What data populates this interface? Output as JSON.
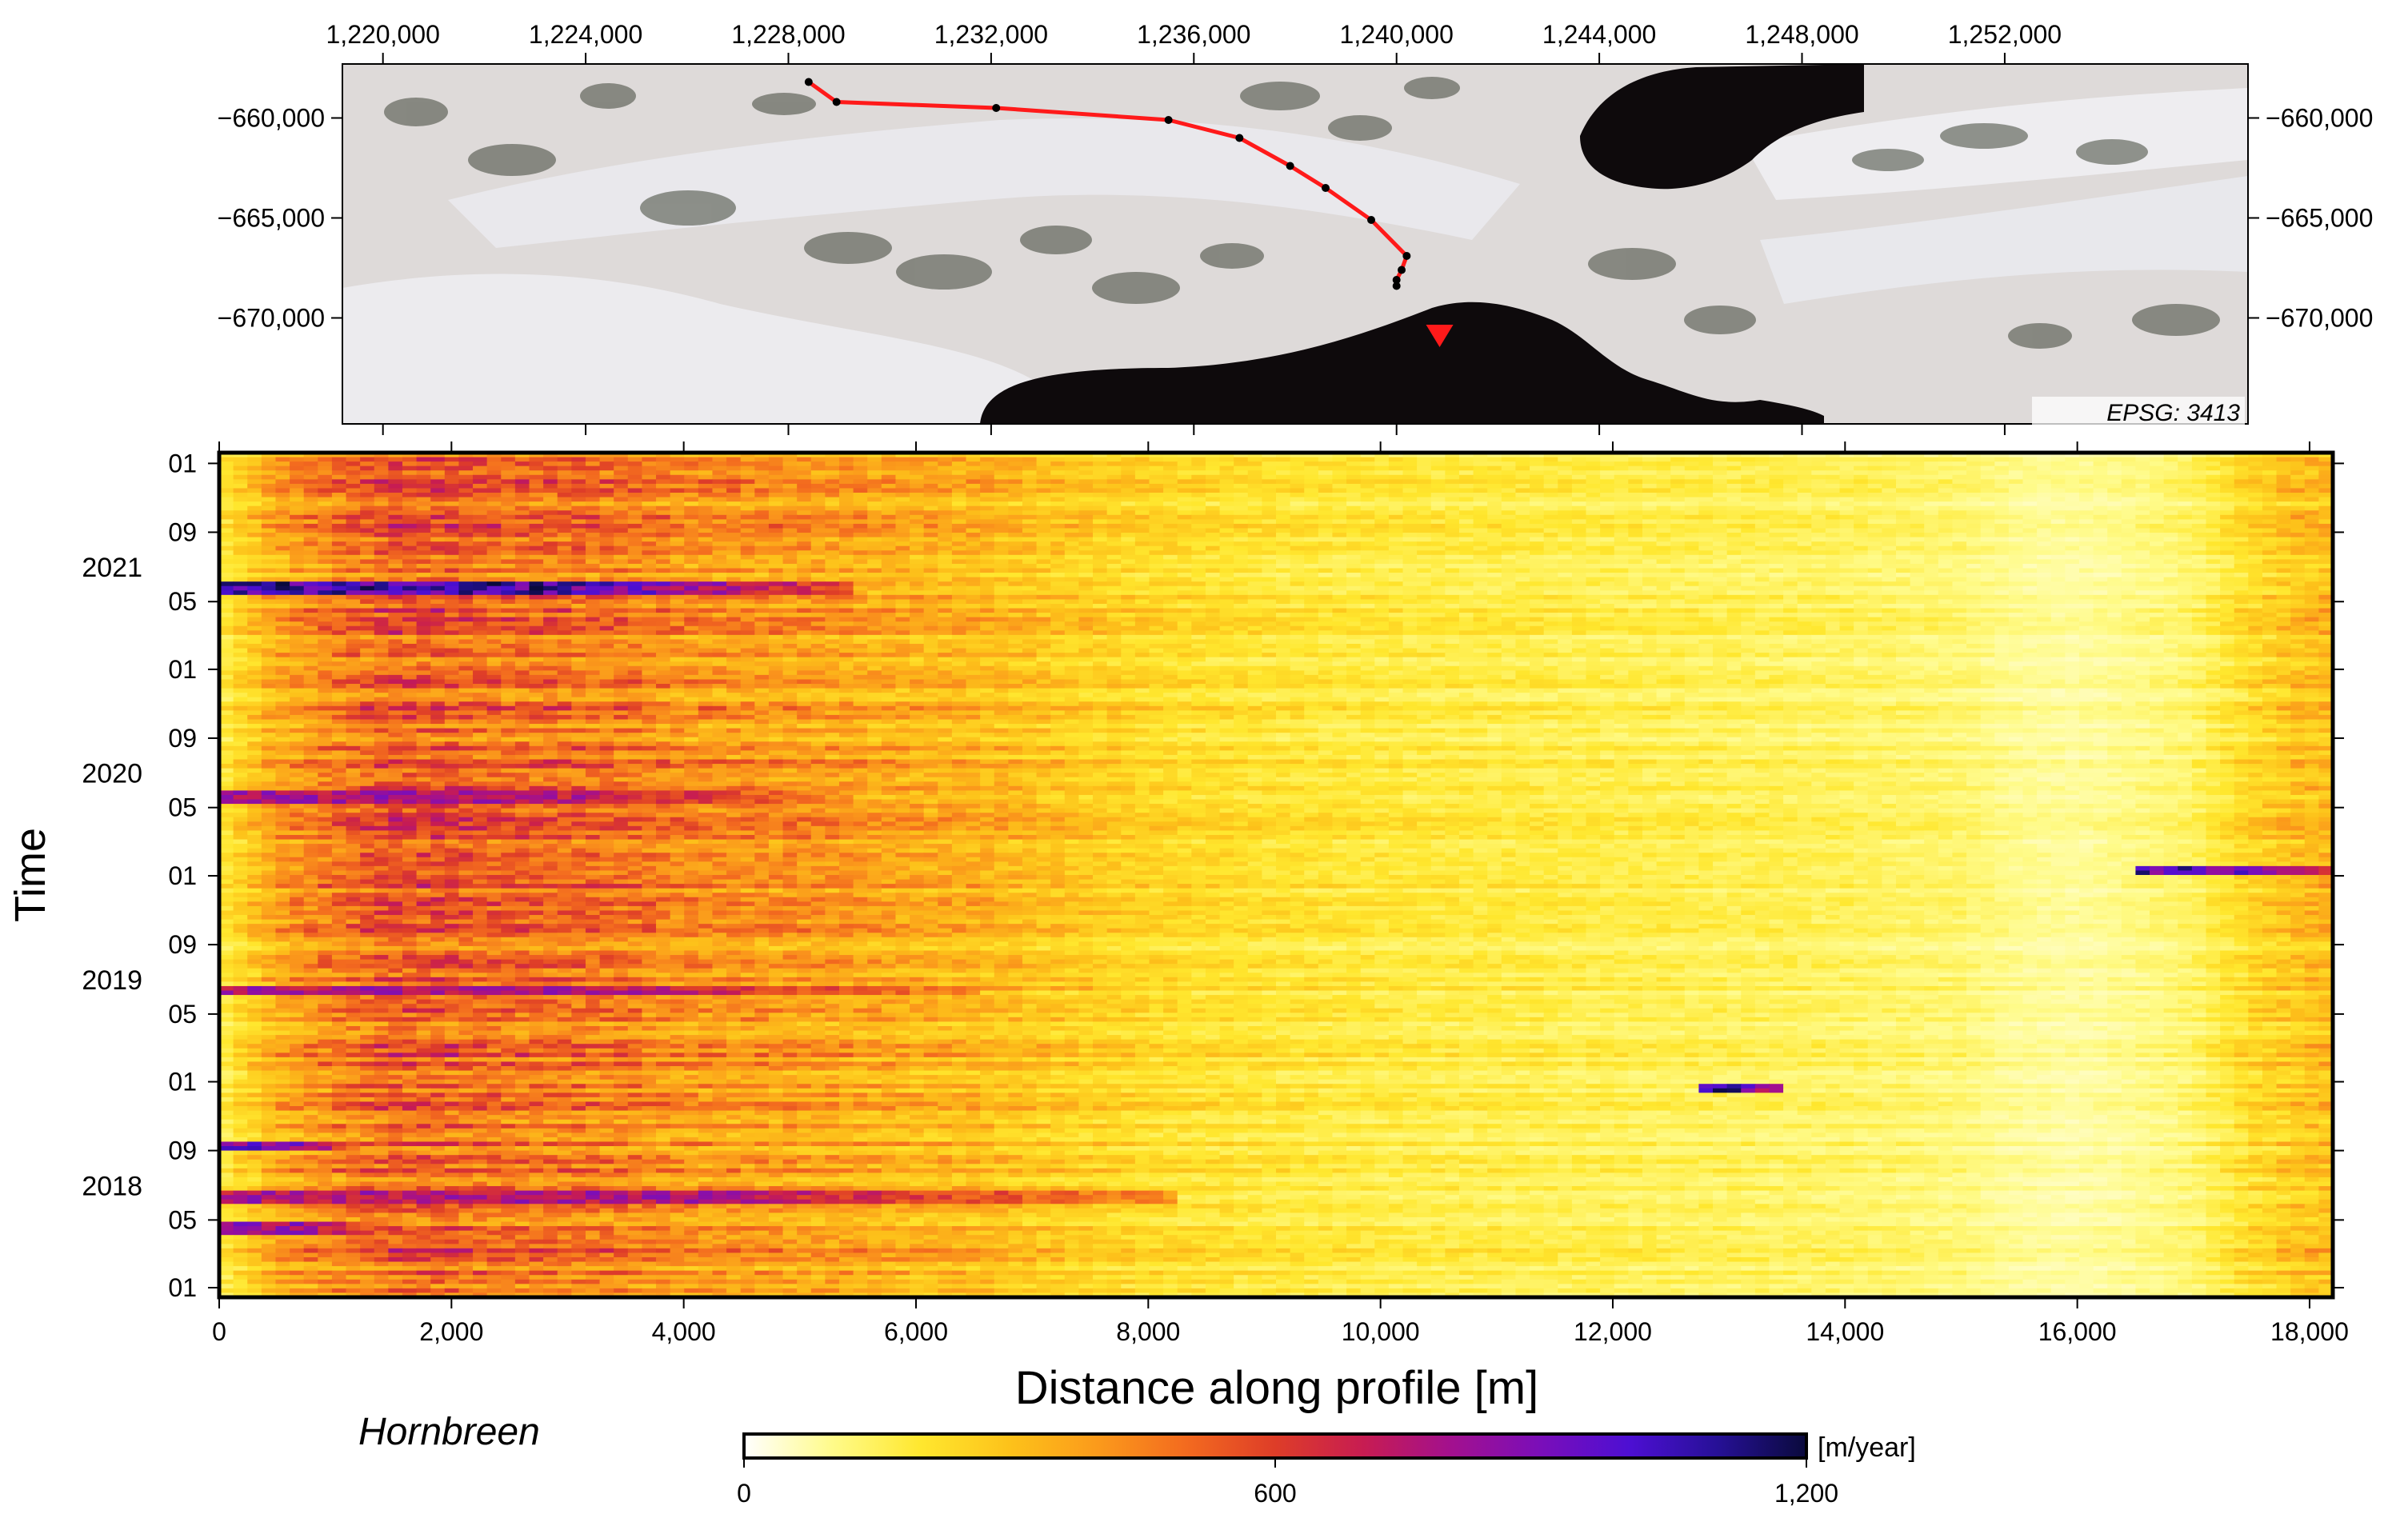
{
  "map": {
    "x_ticks": [
      "1,220,000",
      "1,224,000",
      "1,228,000",
      "1,232,000",
      "1,236,000",
      "1,240,000",
      "1,244,000",
      "1,248,000",
      "1,252,000"
    ],
    "x_tick_values": [
      1220000,
      1224000,
      1228000,
      1232000,
      1236000,
      1240000,
      1244000,
      1248000,
      1252000
    ],
    "x_range": [
      1219200,
      1256800
    ],
    "y_ticks": [
      "−660,000",
      "−665,000",
      "−670,000"
    ],
    "y_tick_values": [
      -660000,
      -665000,
      -670000
    ],
    "y_range": [
      -675300,
      -657300
    ],
    "crs_label": "EPSG: 3413",
    "profile_line_color": "#ff1a1a",
    "marker_color": "#ff1a1a",
    "profile_points": [
      [
        1228400,
        -658200
      ],
      [
        1228950,
        -659200
      ],
      [
        1232100,
        -659500
      ],
      [
        1235500,
        -660100
      ],
      [
        1236900,
        -661000
      ],
      [
        1237900,
        -662400
      ],
      [
        1238600,
        -663500
      ],
      [
        1239500,
        -665100
      ],
      [
        1240200,
        -666900
      ],
      [
        1240100,
        -667600
      ],
      [
        1240000,
        -668100
      ],
      [
        1240000,
        -668400
      ]
    ],
    "terminus_marker": [
      1240850,
      -670900
    ]
  },
  "chart_data": {
    "type": "heatmap",
    "xlabel": "Distance along profile [m]",
    "ylabel": "Time",
    "x_range": [
      0,
      18200
    ],
    "x_ticks": [
      "0",
      "2,000",
      "4,000",
      "6,000",
      "8,000",
      "10,000",
      "12,000",
      "14,000",
      "16,000",
      "18,000"
    ],
    "x_tick_values": [
      0,
      2000,
      4000,
      6000,
      8000,
      10000,
      12000,
      14000,
      16000,
      18000
    ],
    "y_range": [
      "2017-12-15",
      "2022-01-20"
    ],
    "y_month_ticks": [
      {
        "date": "2018-01-01",
        "label": "01"
      },
      {
        "date": "2018-05-01",
        "label": "05"
      },
      {
        "date": "2018-09-01",
        "label": "09"
      },
      {
        "date": "2019-01-01",
        "label": "01"
      },
      {
        "date": "2019-05-01",
        "label": "05"
      },
      {
        "date": "2019-09-01",
        "label": "09"
      },
      {
        "date": "2020-01-01",
        "label": "01"
      },
      {
        "date": "2020-05-01",
        "label": "05"
      },
      {
        "date": "2020-09-01",
        "label": "09"
      },
      {
        "date": "2021-01-01",
        "label": "01"
      },
      {
        "date": "2021-05-01",
        "label": "05"
      },
      {
        "date": "2021-09-01",
        "label": "09"
      },
      {
        "date": "2022-01-01",
        "label": "01"
      }
    ],
    "y_year_labels": [
      {
        "date": "2018-07-01",
        "label": "2018"
      },
      {
        "date": "2019-07-01",
        "label": "2019"
      },
      {
        "date": "2020-07-01",
        "label": "2020"
      },
      {
        "date": "2021-07-01",
        "label": "2021"
      }
    ],
    "colorbar": {
      "min": 0,
      "max": 1200,
      "ticks": [
        "0",
        "600",
        "1,200"
      ],
      "tick_values": [
        0,
        600,
        1200
      ],
      "unit": "[m/year]",
      "colormap": [
        "#ffffff",
        "#fffb8a",
        "#ffe72e",
        "#fdc21a",
        "#fb9a1b",
        "#f36a1f",
        "#de3d28",
        "#c71c52",
        "#a2108f",
        "#7a0eb9",
        "#4d0fd3",
        "#261096",
        "#0a0a3c"
      ]
    },
    "profile_velocity": {
      "distance": [
        0,
        500,
        1000,
        1500,
        2000,
        2500,
        3000,
        3500,
        4000,
        4500,
        5000,
        5500,
        6000,
        6500,
        7000,
        7500,
        8000,
        9000,
        10000,
        11000,
        12000,
        13000,
        14000,
        15000,
        15500,
        16000,
        16500,
        17000,
        17500,
        18000
      ],
      "velocity": [
        170,
        350,
        440,
        520,
        510,
        480,
        470,
        450,
        400,
        390,
        380,
        360,
        330,
        320,
        290,
        260,
        230,
        200,
        180,
        170,
        160,
        150,
        140,
        120,
        90,
        80,
        100,
        130,
        230,
        300
      ]
    },
    "high_velocity_bands": [
      {
        "date": "2021-05-25",
        "x_range": [
          0,
          5500
        ],
        "peak": 1150
      },
      {
        "date": "2020-05-20",
        "x_range": [
          0,
          5500
        ],
        "peak": 860
      },
      {
        "date": "2019-06-12",
        "x_range": [
          0,
          6500
        ],
        "peak": 850
      },
      {
        "date": "2018-06-12",
        "x_range": [
          0,
          8200
        ],
        "peak": 850
      },
      {
        "date": "2018-04-15",
        "x_range": [
          0,
          1500
        ],
        "peak": 900
      },
      {
        "date": "2018-09-10",
        "x_range": [
          0,
          1200
        ],
        "peak": 1000
      },
      {
        "date": "2020-01-10",
        "x_range": [
          16500,
          18200
        ],
        "peak": 1100
      },
      {
        "date": "2018-12-20",
        "x_range": [
          12800,
          13500
        ],
        "peak": 1150
      }
    ],
    "annotation": "Hornbreen"
  }
}
